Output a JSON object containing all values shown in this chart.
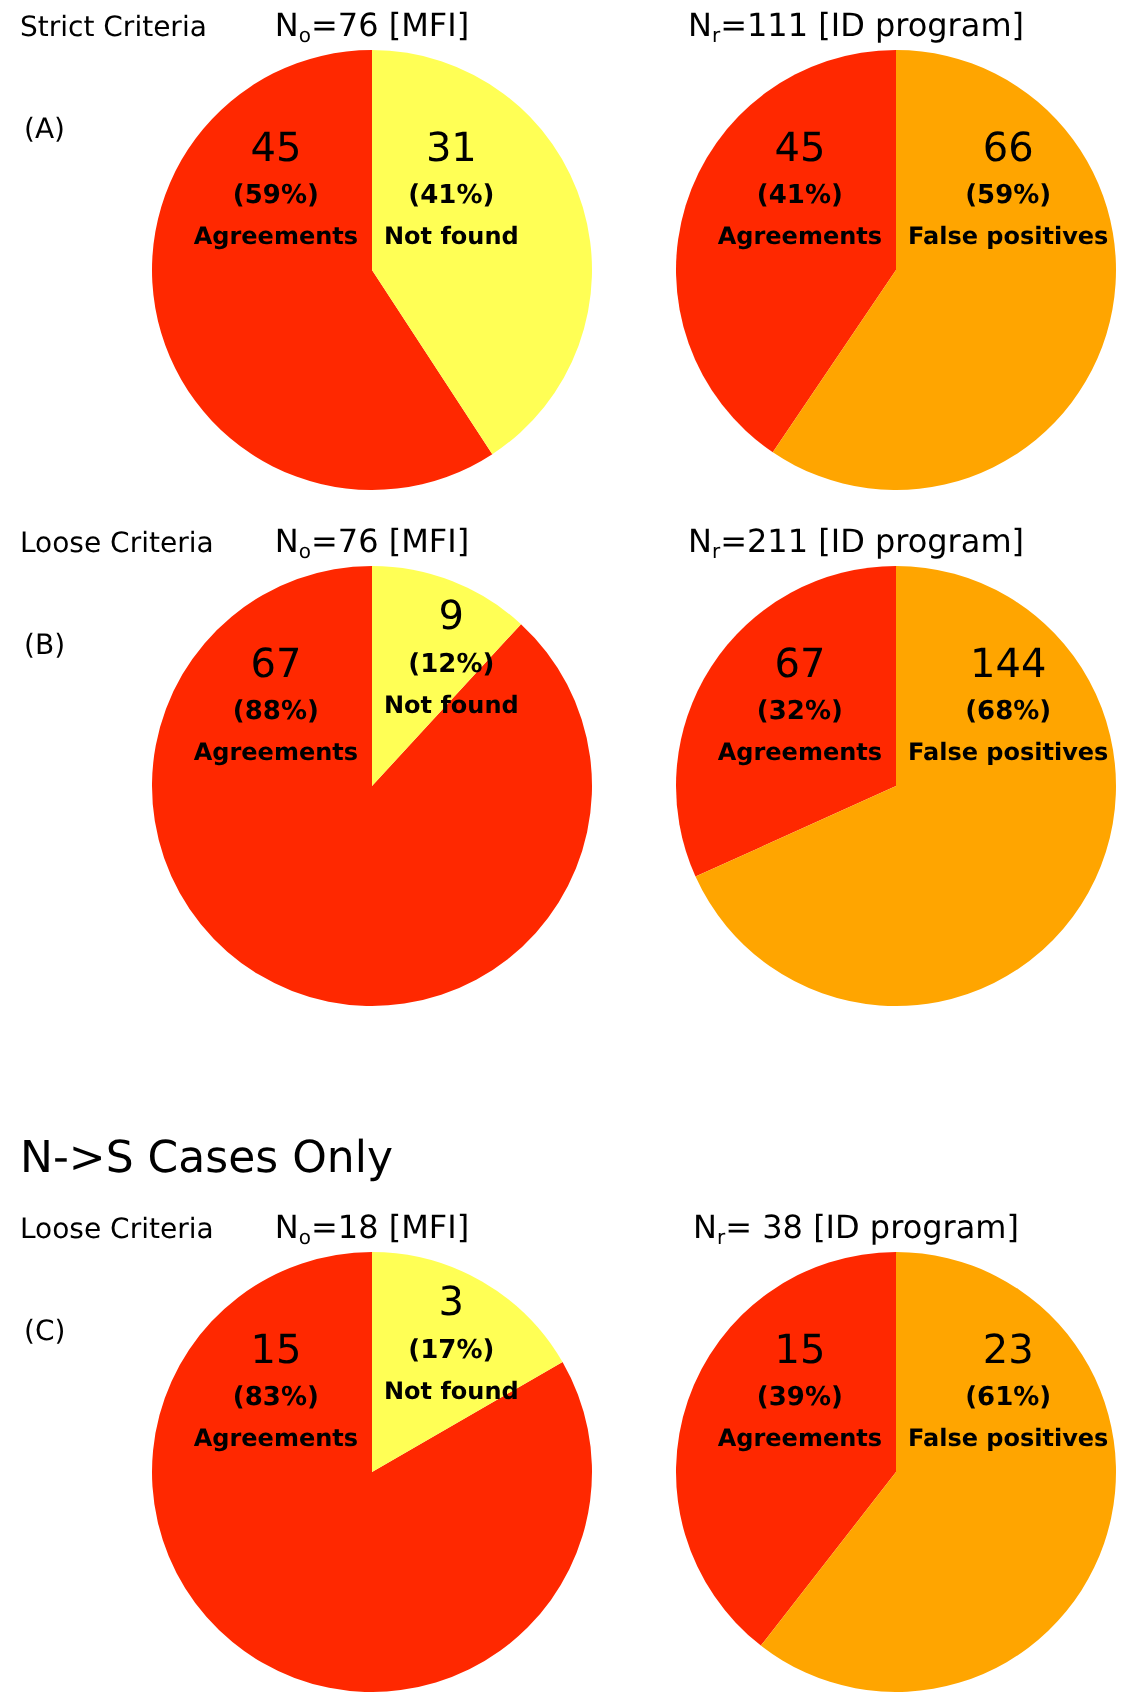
{
  "chart_data": [
    {
      "type": "pie",
      "title": "N$_{o}$=76 [MFI]",
      "categories": [
        "Agreements",
        "Not found"
      ],
      "values": [
        45,
        31
      ],
      "colors": [
        "#ff2800",
        "#ffff55"
      ],
      "value_labels": [
        "45\n(59%)",
        "31\n(41%)"
      ],
      "annotations": [
        "Strict Criteria",
        "(A)"
      ]
    },
    {
      "type": "pie",
      "title": "N$_{r}$=111 [ID program]",
      "categories": [
        "Agreements",
        "False positives"
      ],
      "values": [
        45,
        66
      ],
      "colors": [
        "#ff2800",
        "#ffa500"
      ],
      "value_labels": [
        "45\n(41%)",
        "66\n(59%)"
      ]
    },
    {
      "type": "pie",
      "title": "N$_{o}$=76 [MFI]",
      "categories": [
        "Agreements",
        "Not found"
      ],
      "values": [
        67,
        9
      ],
      "colors": [
        "#ff2800",
        "#ffff55"
      ],
      "value_labels": [
        "67\n(88%)",
        "9\n(12%)"
      ],
      "annotations": [
        "Loose Criteria",
        "(B)"
      ]
    },
    {
      "type": "pie",
      "title": "N$_{r}$=211 [ID program]",
      "categories": [
        "Agreements",
        "False positives"
      ],
      "values": [
        67,
        144
      ],
      "colors": [
        "#ff2800",
        "#ffa500"
      ],
      "value_labels": [
        "67\n(32%)",
        "144\n(68%)"
      ]
    },
    {
      "type": "pie",
      "title": "N$_{o}$=18 [MFI]",
      "categories": [
        "Agreements",
        "Not found"
      ],
      "values": [
        15,
        3
      ],
      "colors": [
        "#ff2800",
        "#ffff55"
      ],
      "value_labels": [
        "15\n(83%)",
        "3\n(17%)"
      ],
      "annotations": [
        "N->S Cases Only",
        "Loose Criteria",
        "(C)"
      ]
    },
    {
      "type": "pie",
      "title": "N$_{r}$= 38 [ID program]",
      "categories": [
        "Agreements",
        "False positives"
      ],
      "values": [
        15,
        23
      ],
      "colors": [
        "#ff2800",
        "#ffa500"
      ],
      "value_labels": [
        "15\n(39%)",
        "23\n(61%)"
      ]
    }
  ]
}
